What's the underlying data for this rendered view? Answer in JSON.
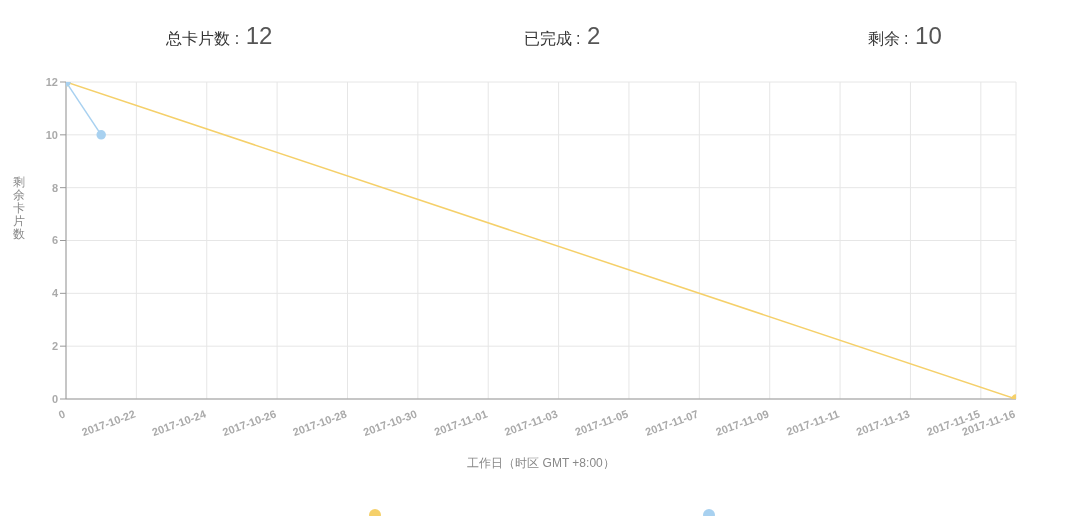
{
  "chart_data": {
    "type": "line",
    "annotations": [
      "总卡片数 : 12",
      "已完成 : 2",
      "剩余 : 10"
    ],
    "xlabel": "工作日（时区 GMT +8:00）",
    "ylabel": "剩余卡片数",
    "series": [
      {
        "color": "#f5d06a",
        "x": [
          "2017-10-20",
          "2017-11-16"
        ],
        "values": [
          12,
          0
        ]
      },
      {
        "color": "#a8d1f0",
        "x": [
          "2017-10-20",
          "2017-10-21"
        ],
        "values": [
          12,
          10
        ]
      }
    ],
    "xlim": [
      "2017-10-20",
      "2017-11-16"
    ],
    "xticks": [
      {
        "value": "2017-10-20",
        "label": "0"
      },
      "2017-10-22",
      "2017-10-24",
      "2017-10-26",
      "2017-10-28",
      "2017-10-30",
      "2017-11-01",
      "2017-11-03",
      "2017-11-05",
      "2017-11-07",
      "2017-11-09",
      "2017-11-11",
      "2017-11-13",
      "2017-11-15",
      "2017-11-16"
    ],
    "ylim": [
      0,
      12
    ],
    "yticks": [
      0,
      2,
      4,
      6,
      8,
      10,
      12
    ],
    "grid": true,
    "marker": "circle",
    "line_style": "solid"
  }
}
